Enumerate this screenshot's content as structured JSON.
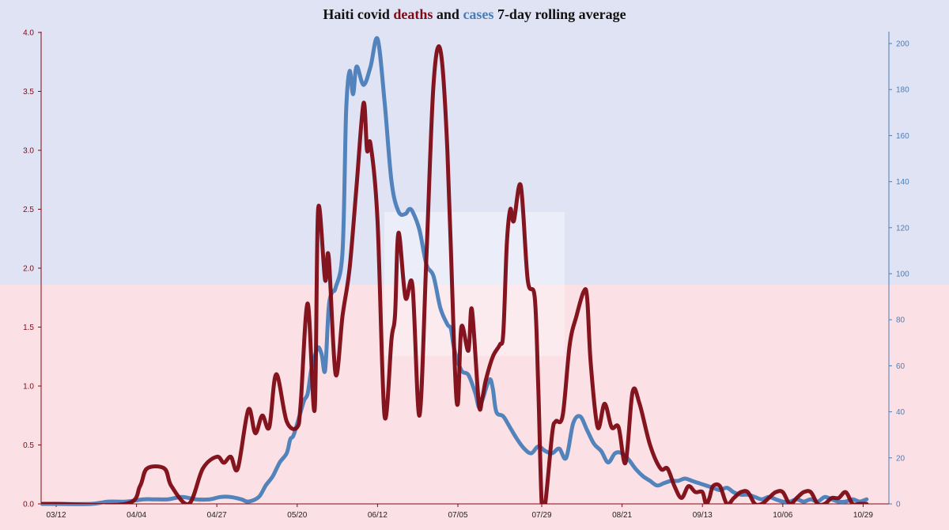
{
  "title": {
    "prefix": "Haiti covid ",
    "deaths_word": "deaths",
    "middle": " and ",
    "cases_word": "cases",
    "suffix": " 7-day rolling average"
  },
  "colors": {
    "deaths": "#7d0a14",
    "cases": "#4a7db8",
    "flag_blue": "#e0e3f4",
    "flag_red": "#fbe1e5"
  },
  "chart_data": {
    "type": "line",
    "x_tick_labels": [
      "03/12",
      "04/04",
      "04/27",
      "05/20",
      "06/12",
      "07/05",
      "07/29",
      "08/21",
      "09/13",
      "10/06",
      "10/29"
    ],
    "x_tick_days": [
      0,
      23,
      46,
      69,
      92,
      115,
      139,
      162,
      185,
      208,
      231
    ],
    "y_left": {
      "ticks": [
        "0.0",
        "0.5",
        "1.0",
        "1.5",
        "2.0",
        "2.5",
        "3.0",
        "3.5",
        "4.0"
      ],
      "range": [
        0,
        4
      ]
    },
    "y_right": {
      "ticks": [
        "0",
        "20",
        "40",
        "60",
        "80",
        "100",
        "120",
        "140",
        "160",
        "180",
        "200"
      ],
      "range": [
        0,
        200
      ]
    },
    "legend": "in-title",
    "series": [
      {
        "name": "deaths",
        "axis": "left",
        "days": [
          -4,
          0,
          20,
          24,
          26,
          31,
          33,
          38,
          42,
          46,
          48,
          50,
          52,
          55,
          57,
          59,
          61,
          63,
          66,
          69,
          70,
          72,
          74,
          75,
          77,
          78,
          80,
          82,
          84,
          86,
          88,
          89,
          90,
          92,
          94,
          96,
          97,
          98,
          100,
          102,
          104,
          106,
          108,
          110,
          112,
          114,
          115,
          116,
          118,
          119,
          121,
          122,
          123,
          125,
          127,
          128,
          129,
          130,
          131,
          133,
          135,
          137,
          138,
          139,
          140,
          142,
          143,
          145,
          147,
          149,
          151,
          152,
          153,
          155,
          157,
          159,
          161,
          163,
          165,
          167,
          170,
          173,
          175,
          177,
          179,
          181,
          183,
          185,
          186,
          187,
          188,
          190,
          192,
          194,
          196,
          198,
          200,
          202,
          204,
          206,
          208,
          210,
          212,
          214,
          216,
          218,
          220,
          222,
          224,
          226,
          228,
          230,
          232
        ],
        "values": [
          0.0,
          0.0,
          0.0,
          0.15,
          0.3,
          0.3,
          0.15,
          0.0,
          0.3,
          0.4,
          0.35,
          0.4,
          0.3,
          0.8,
          0.6,
          0.75,
          0.65,
          1.1,
          0.7,
          0.65,
          0.85,
          1.7,
          0.8,
          2.5,
          1.9,
          2.1,
          1.1,
          1.6,
          2.0,
          2.7,
          3.4,
          3.0,
          3.05,
          2.4,
          0.75,
          1.4,
          1.6,
          2.3,
          1.75,
          1.85,
          0.75,
          2.1,
          3.55,
          3.85,
          3.0,
          1.25,
          0.85,
          1.5,
          1.3,
          1.65,
          0.85,
          0.9,
          1.05,
          1.25,
          1.35,
          1.45,
          2.2,
          2.5,
          2.4,
          2.7,
          1.9,
          1.75,
          1.0,
          0.0,
          0.0,
          0.6,
          0.7,
          0.75,
          1.35,
          1.6,
          1.8,
          1.75,
          1.2,
          0.65,
          0.85,
          0.65,
          0.65,
          0.35,
          0.95,
          0.85,
          0.5,
          0.3,
          0.3,
          0.15,
          0.05,
          0.15,
          0.1,
          0.1,
          0.0,
          0.05,
          0.15,
          0.15,
          0.0,
          0.05,
          0.1,
          0.1,
          0.0,
          0.0,
          0.05,
          0.1,
          0.1,
          0.0,
          0.05,
          0.1,
          0.1,
          0.0,
          0.0,
          0.05,
          0.05,
          0.1,
          0.0,
          0.0,
          0.0
        ],
        "clip_to_axis": true
      },
      {
        "name": "cases",
        "axis": "right",
        "days": [
          -4,
          0,
          10,
          15,
          20,
          25,
          28,
          32,
          36,
          40,
          44,
          47,
          50,
          53,
          55,
          58,
          60,
          62,
          64,
          66,
          67,
          68,
          70,
          71,
          72,
          73,
          74,
          75,
          76,
          77,
          78,
          79,
          80,
          82,
          83,
          84,
          85,
          86,
          88,
          90,
          92,
          94,
          96,
          98,
          100,
          101,
          102,
          104,
          106,
          108,
          110,
          112,
          113,
          114,
          116,
          118,
          120,
          121,
          122,
          124,
          125,
          126,
          128,
          130,
          132,
          134,
          136,
          138,
          140,
          142,
          144,
          146,
          148,
          150,
          152,
          154,
          156,
          158,
          160,
          162,
          164,
          166,
          168,
          170,
          172,
          174,
          176,
          178,
          180,
          182,
          184,
          186,
          188,
          190,
          192,
          194,
          196,
          198,
          200,
          202,
          204,
          206,
          208,
          210,
          212,
          214,
          216,
          218,
          220,
          222,
          224,
          226,
          228,
          230,
          232
        ],
        "values": [
          0,
          0,
          0,
          1,
          1,
          2,
          2,
          2,
          3,
          2,
          2,
          3,
          3,
          2,
          1,
          3,
          8,
          12,
          18,
          22,
          28,
          30,
          40,
          45,
          48,
          58,
          64,
          68,
          65,
          58,
          85,
          92,
          94,
          110,
          170,
          188,
          178,
          190,
          182,
          190,
          202,
          175,
          140,
          127,
          126,
          128,
          127,
          119,
          104,
          99,
          85,
          78,
          76,
          67,
          58,
          56,
          48,
          42,
          45,
          54,
          50,
          40,
          38,
          33,
          28,
          24,
          22,
          25,
          23,
          22,
          24,
          20,
          35,
          38,
          32,
          26,
          23,
          18,
          22,
          22,
          19,
          15,
          12,
          10,
          8,
          9,
          10,
          10,
          11,
          10,
          9,
          8,
          7,
          6,
          7,
          5,
          4,
          4,
          3,
          2,
          3,
          2,
          1,
          1,
          2,
          1,
          2,
          1,
          3,
          2,
          1,
          1,
          2,
          1,
          2
        ],
        "clip_to_axis": false
      }
    ]
  }
}
